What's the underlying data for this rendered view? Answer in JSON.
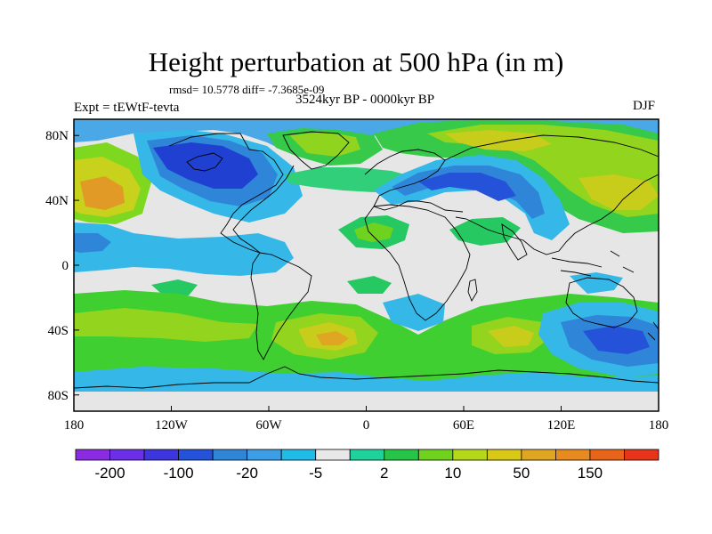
{
  "title": "Height perturbation at 500 hPa (in m)",
  "stats_line": "rmsd= 10.5778 diff= -7.3685e-09",
  "period": "3524kyr BP - 0000kyr BP",
  "experiment": "Expt = tEWtF-tevta",
  "season": "DJF",
  "map": {
    "projection": "cylindrical-equidistant",
    "lon_range": [
      -180,
      180
    ],
    "lat_range": [
      -90,
      90
    ],
    "x_ticks": [
      {
        "lon": -180,
        "label": "180"
      },
      {
        "lon": -120,
        "label": "120W"
      },
      {
        "lon": -60,
        "label": "60W"
      },
      {
        "lon": 0,
        "label": "0"
      },
      {
        "lon": 60,
        "label": "60E"
      },
      {
        "lon": 120,
        "label": "120E"
      },
      {
        "lon": 180,
        "label": "180"
      }
    ],
    "y_ticks": [
      {
        "lat": 80,
        "label": "80N"
      },
      {
        "lat": 40,
        "label": "40N"
      },
      {
        "lat": 0,
        "label": "0"
      },
      {
        "lat": -40,
        "label": "40S"
      },
      {
        "lat": -80,
        "label": "80S"
      }
    ],
    "fields": [
      {
        "name": "n-pacific-high",
        "level": 50,
        "lon": [
          -180,
          -130
        ],
        "lat": [
          12,
          66
        ],
        "color": "#e8a028"
      },
      {
        "name": "n-america-low",
        "level": -100,
        "lon": [
          -138,
          -70
        ],
        "lat": [
          36,
          82
        ],
        "color": "#1f3ed6"
      },
      {
        "name": "greenland-high",
        "level": 10,
        "lon": [
          -68,
          -20
        ],
        "lat": [
          66,
          88
        ],
        "color": "#3fcf26"
      },
      {
        "name": "siberia-high",
        "level": 20,
        "lon": [
          40,
          160
        ],
        "lat": [
          30,
          88
        ],
        "color": "#93d41e"
      },
      {
        "name": "europe-low",
        "level": -20,
        "lon": [
          -10,
          50
        ],
        "lat": [
          20,
          60
        ],
        "color": "#2f86d8"
      },
      {
        "name": "s-atlantic-high",
        "level": 20,
        "lon": [
          -90,
          0
        ],
        "lat": [
          -80,
          -28
        ],
        "color": "#c8cc1a"
      },
      {
        "name": "s-indian-low",
        "level": -20,
        "lon": [
          90,
          180
        ],
        "lat": [
          -70,
          -20
        ],
        "color": "#2f86d8"
      },
      {
        "name": "s-pacific-high",
        "level": 10,
        "lon": [
          -180,
          -90
        ],
        "lat": [
          -75,
          -28
        ],
        "color": "#3fcf26"
      }
    ]
  },
  "colorbar": {
    "colors": [
      "#8a2be2",
      "#6a2fe6",
      "#3d35dd",
      "#2452d8",
      "#2f86d8",
      "#3b9ee6",
      "#20bbe8",
      "#e8e8e8",
      "#1dd39b",
      "#26c548",
      "#6fd21e",
      "#b6d81a",
      "#d8c818",
      "#e0a522",
      "#e88a1f",
      "#e8641a",
      "#e83418"
    ],
    "labels": [
      {
        "boundary": 1,
        "text": "-200"
      },
      {
        "boundary": 3,
        "text": "-100"
      },
      {
        "boundary": 5,
        "text": "-20"
      },
      {
        "boundary": 7,
        "text": "-5"
      },
      {
        "boundary": 9,
        "text": "2"
      },
      {
        "boundary": 11,
        "text": "10"
      },
      {
        "boundary": 13,
        "text": "50"
      },
      {
        "boundary": 15,
        "text": "150"
      }
    ]
  }
}
